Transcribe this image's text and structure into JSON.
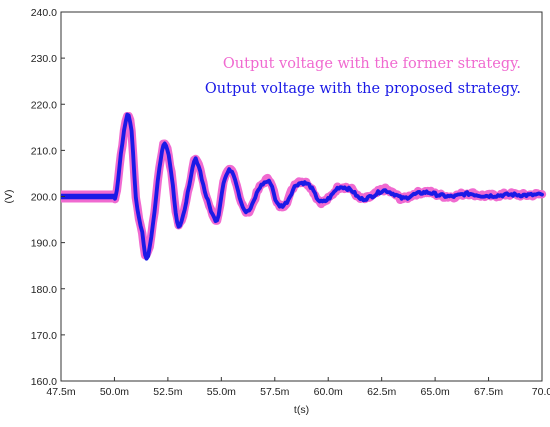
{
  "chart_data": {
    "type": "line",
    "title": "",
    "xlabel": "t(s)",
    "ylabel": "(V)",
    "xlim": [
      47.5,
      70.0
    ],
    "ylim": [
      160.0,
      240.0
    ],
    "x_unit": "m",
    "x_ticks": [
      47.5,
      50.0,
      52.5,
      55.0,
      57.5,
      60.0,
      62.5,
      65.0,
      67.5,
      70.0
    ],
    "x_tick_labels": [
      "47.5m",
      "50.0m",
      "52.5m",
      "55.0m",
      "57.5m",
      "60.0m",
      "62.5m",
      "65.0m",
      "67.5m",
      "70.0"
    ],
    "y_ticks": [
      160,
      170,
      180,
      190,
      200,
      210,
      220,
      230,
      240
    ],
    "y_tick_labels": [
      "160.0",
      "170.0",
      "180.0",
      "190.0",
      "200.0",
      "210.0",
      "220.0",
      "230.0",
      "240.0"
    ],
    "grid": false,
    "legend_position": "top-right",
    "series": [
      {
        "name": "Output voltage with the former strategy.",
        "color": "#f06ad0",
        "x": [
          47.5,
          50.0,
          50.05,
          50.3,
          50.6,
          50.8,
          51.0,
          51.3,
          51.5,
          51.8,
          52.1,
          52.35,
          52.6,
          53.0,
          53.5,
          53.8,
          54.3,
          54.8,
          55.1,
          55.5,
          56.0,
          56.3,
          56.8,
          57.3,
          57.6,
          58.0,
          58.5,
          59.1,
          59.6,
          60.0,
          60.5,
          61.1,
          61.5,
          62.0,
          62.6,
          63.1,
          63.5,
          64.0,
          64.6,
          65.2,
          65.8,
          66.5,
          67.2,
          67.8,
          68.5,
          69.2,
          70.0
        ],
        "y": [
          200,
          200,
          200,
          209,
          217.5,
          214,
          200,
          192,
          187,
          194,
          206,
          211.5,
          207,
          194,
          202,
          208.5,
          200,
          195,
          203,
          205.5,
          198,
          197,
          202,
          203.5,
          198.5,
          198.5,
          203,
          202.5,
          199,
          199.5,
          202,
          201.5,
          199.5,
          200,
          201.5,
          200.5,
          199.5,
          200.5,
          201,
          200.3,
          200,
          200.7,
          200.2,
          200.2,
          200.5,
          200.3,
          200.5
        ],
        "band_halfwidth": 1.3
      },
      {
        "name": "Output voltage with the proposed strategy.",
        "color": "#1a1ae6",
        "x": [
          47.5,
          50.0,
          50.05,
          50.3,
          50.6,
          50.8,
          51.0,
          51.3,
          51.5,
          51.8,
          52.1,
          52.35,
          52.6,
          53.0,
          53.5,
          53.8,
          54.3,
          54.8,
          55.1,
          55.5,
          56.0,
          56.3,
          56.8,
          57.3,
          57.6,
          58.0,
          58.5,
          59.1,
          59.6,
          60.0,
          60.5,
          61.1,
          61.5,
          62.0,
          62.6,
          63.1,
          63.5,
          64.0,
          64.6,
          65.2,
          65.8,
          66.5,
          67.2,
          67.8,
          68.5,
          69.2,
          70.0
        ],
        "y": [
          200,
          200,
          200,
          209,
          217.5,
          214,
          200,
          192,
          186.5,
          194,
          206,
          211.5,
          207,
          193.5,
          202,
          208,
          200,
          195,
          203,
          205.5,
          198,
          197,
          202,
          203,
          198.5,
          198.5,
          202.5,
          202.5,
          199,
          199.5,
          202,
          201.3,
          199.5,
          200,
          201.3,
          200.5,
          199.6,
          200.4,
          200.9,
          200.3,
          200,
          200.6,
          200.2,
          200.2,
          200.4,
          200.3,
          200.4
        ],
        "band_halfwidth": 0.6
      }
    ]
  }
}
